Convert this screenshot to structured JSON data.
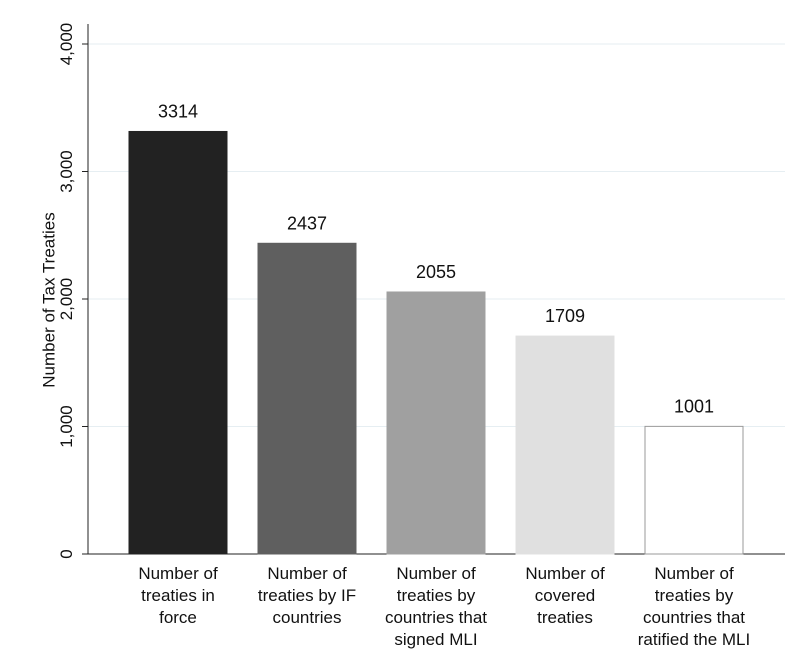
{
  "chart_data": {
    "type": "bar",
    "y_label": "Number of Tax Treaties",
    "categories": [
      "Number of\ntreaties in\nforce",
      "Number of\ntreaties by IF\ncountries",
      "Number of\ntreaties by\ncountries that\nsigned MLI",
      "Number of\ncovered\ntreaties",
      "Number of\ntreaties by\ncountries that\nratified the MLI"
    ],
    "values": [
      3314,
      2437,
      2055,
      1709,
      1001
    ],
    "colors": [
      "#222222",
      "#5f5f5f",
      "#a0a0a0",
      "#e0e0e0",
      "#ffffff"
    ],
    "ylim": [
      0,
      4000
    ],
    "yticks": [
      0,
      {
        "value": 1000,
        "label": "1,000"
      },
      {
        "value": 2000,
        "label": "2,000"
      },
      {
        "value": 3000,
        "label": "3,000"
      },
      {
        "value": 4000,
        "label": "4,000"
      }
    ],
    "grid": true
  }
}
